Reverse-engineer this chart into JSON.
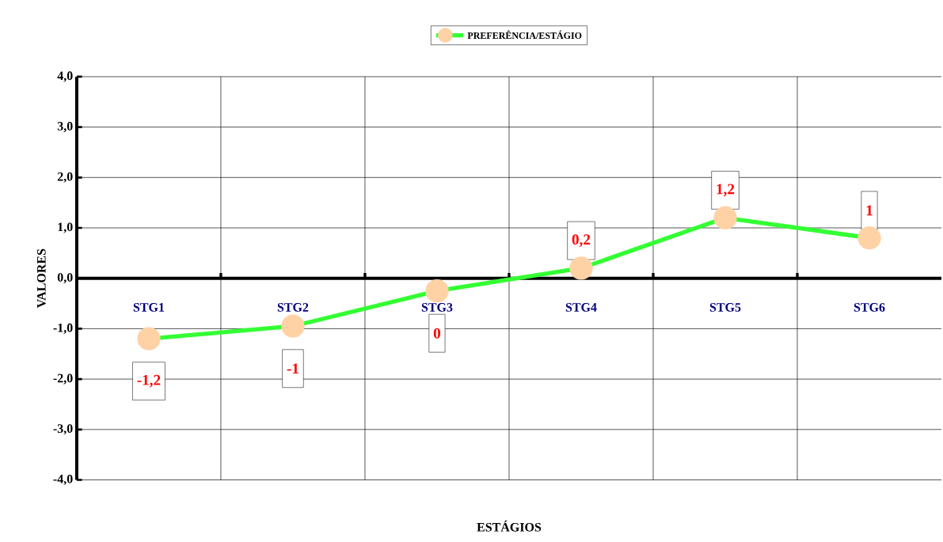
{
  "chart_data": {
    "type": "line",
    "xlabel": "ESTÁGIOS",
    "ylabel": "VALORES",
    "categories": [
      "STG1",
      "STG2",
      "STG3",
      "STG4",
      "STG5",
      "STG6"
    ],
    "series": [
      {
        "name": "PREFERÊNCIA/ESTÁGIO",
        "color": "#33ff33",
        "values": [
          -1.2,
          -0.95,
          -0.25,
          0.2,
          1.2,
          0.8
        ],
        "value_labels": [
          "-1,2",
          "-1",
          "0",
          "0,2",
          "1,2",
          "1"
        ]
      }
    ],
    "ylim": [
      -4,
      4
    ],
    "yticks": [
      {
        "value": -4,
        "label": "-4,0"
      },
      {
        "value": -3,
        "label": "-3,0"
      },
      {
        "value": -2,
        "label": "-2,0"
      },
      {
        "value": -1,
        "label": "-1,0"
      },
      {
        "value": 0,
        "label": "0,0"
      },
      {
        "value": 1,
        "label": "1,0"
      },
      {
        "value": 2,
        "label": "2,0"
      },
      {
        "value": 3,
        "label": "3,0"
      },
      {
        "value": 4,
        "label": "4,0"
      }
    ],
    "grid": true,
    "legend": "top",
    "marker": "circle"
  }
}
